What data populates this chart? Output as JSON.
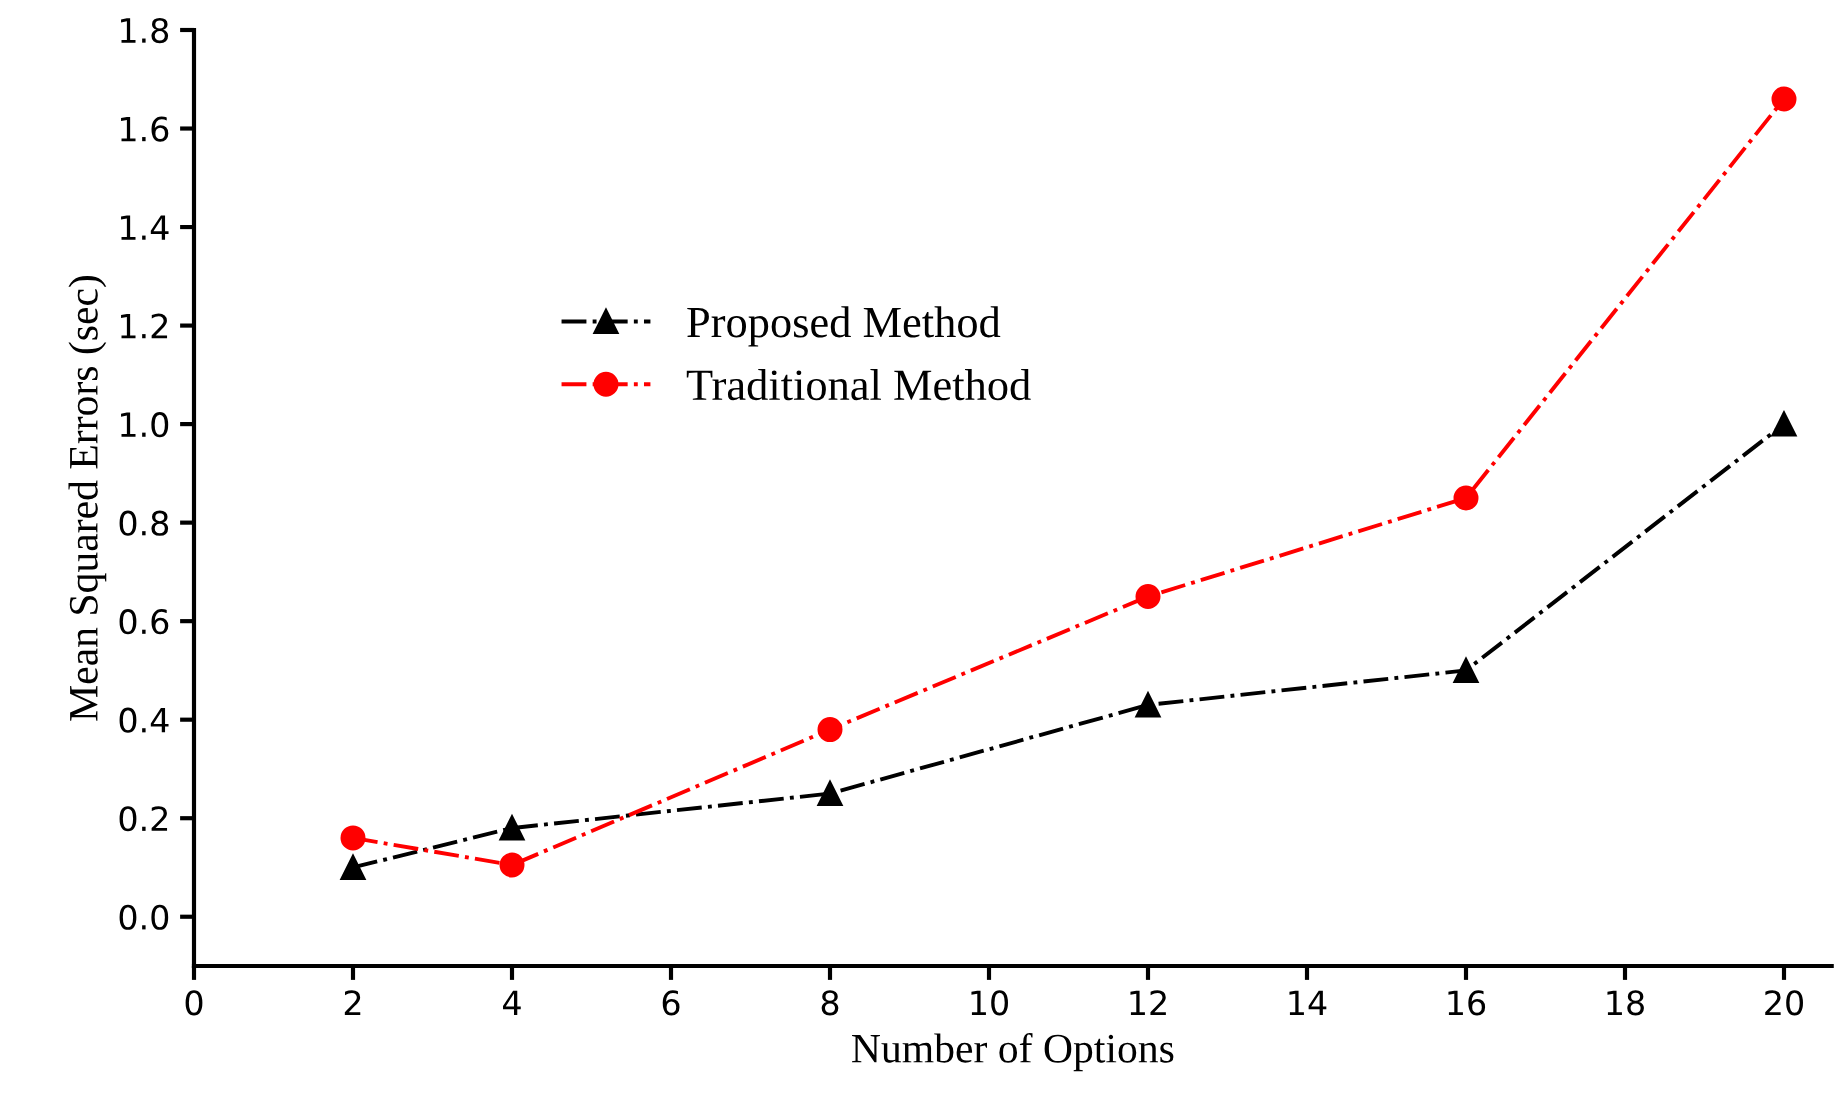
{
  "chart_data": {
    "type": "line",
    "xlabel": "Number of Options",
    "ylabel": "Mean Squared Errors (sec)",
    "x": [
      2,
      4,
      8,
      12,
      16,
      20
    ],
    "series": [
      {
        "name": "Proposed Method",
        "color": "#000000",
        "marker": "triangle",
        "values": [
          0.1,
          0.18,
          0.25,
          0.43,
          0.5,
          1.0
        ]
      },
      {
        "name": "Traditional Method",
        "color": "#ff0000",
        "marker": "circle",
        "values": [
          0.16,
          0.105,
          0.38,
          0.65,
          0.85,
          1.66
        ]
      }
    ],
    "line_style": "dashdot",
    "xlim": [
      0,
      20.6
    ],
    "xticks": [
      0,
      2,
      4,
      6,
      8,
      10,
      12,
      14,
      16,
      18,
      20
    ],
    "ylim": [
      -0.1,
      1.8
    ],
    "yticks": [
      {
        "value": 0,
        "label": "0.0"
      },
      0.2,
      0.4,
      0.6,
      0.8,
      {
        "value": 1,
        "label": "1.0"
      },
      1.2,
      1.4,
      1.6,
      1.8
    ],
    "grid": false,
    "legend": "center left"
  }
}
